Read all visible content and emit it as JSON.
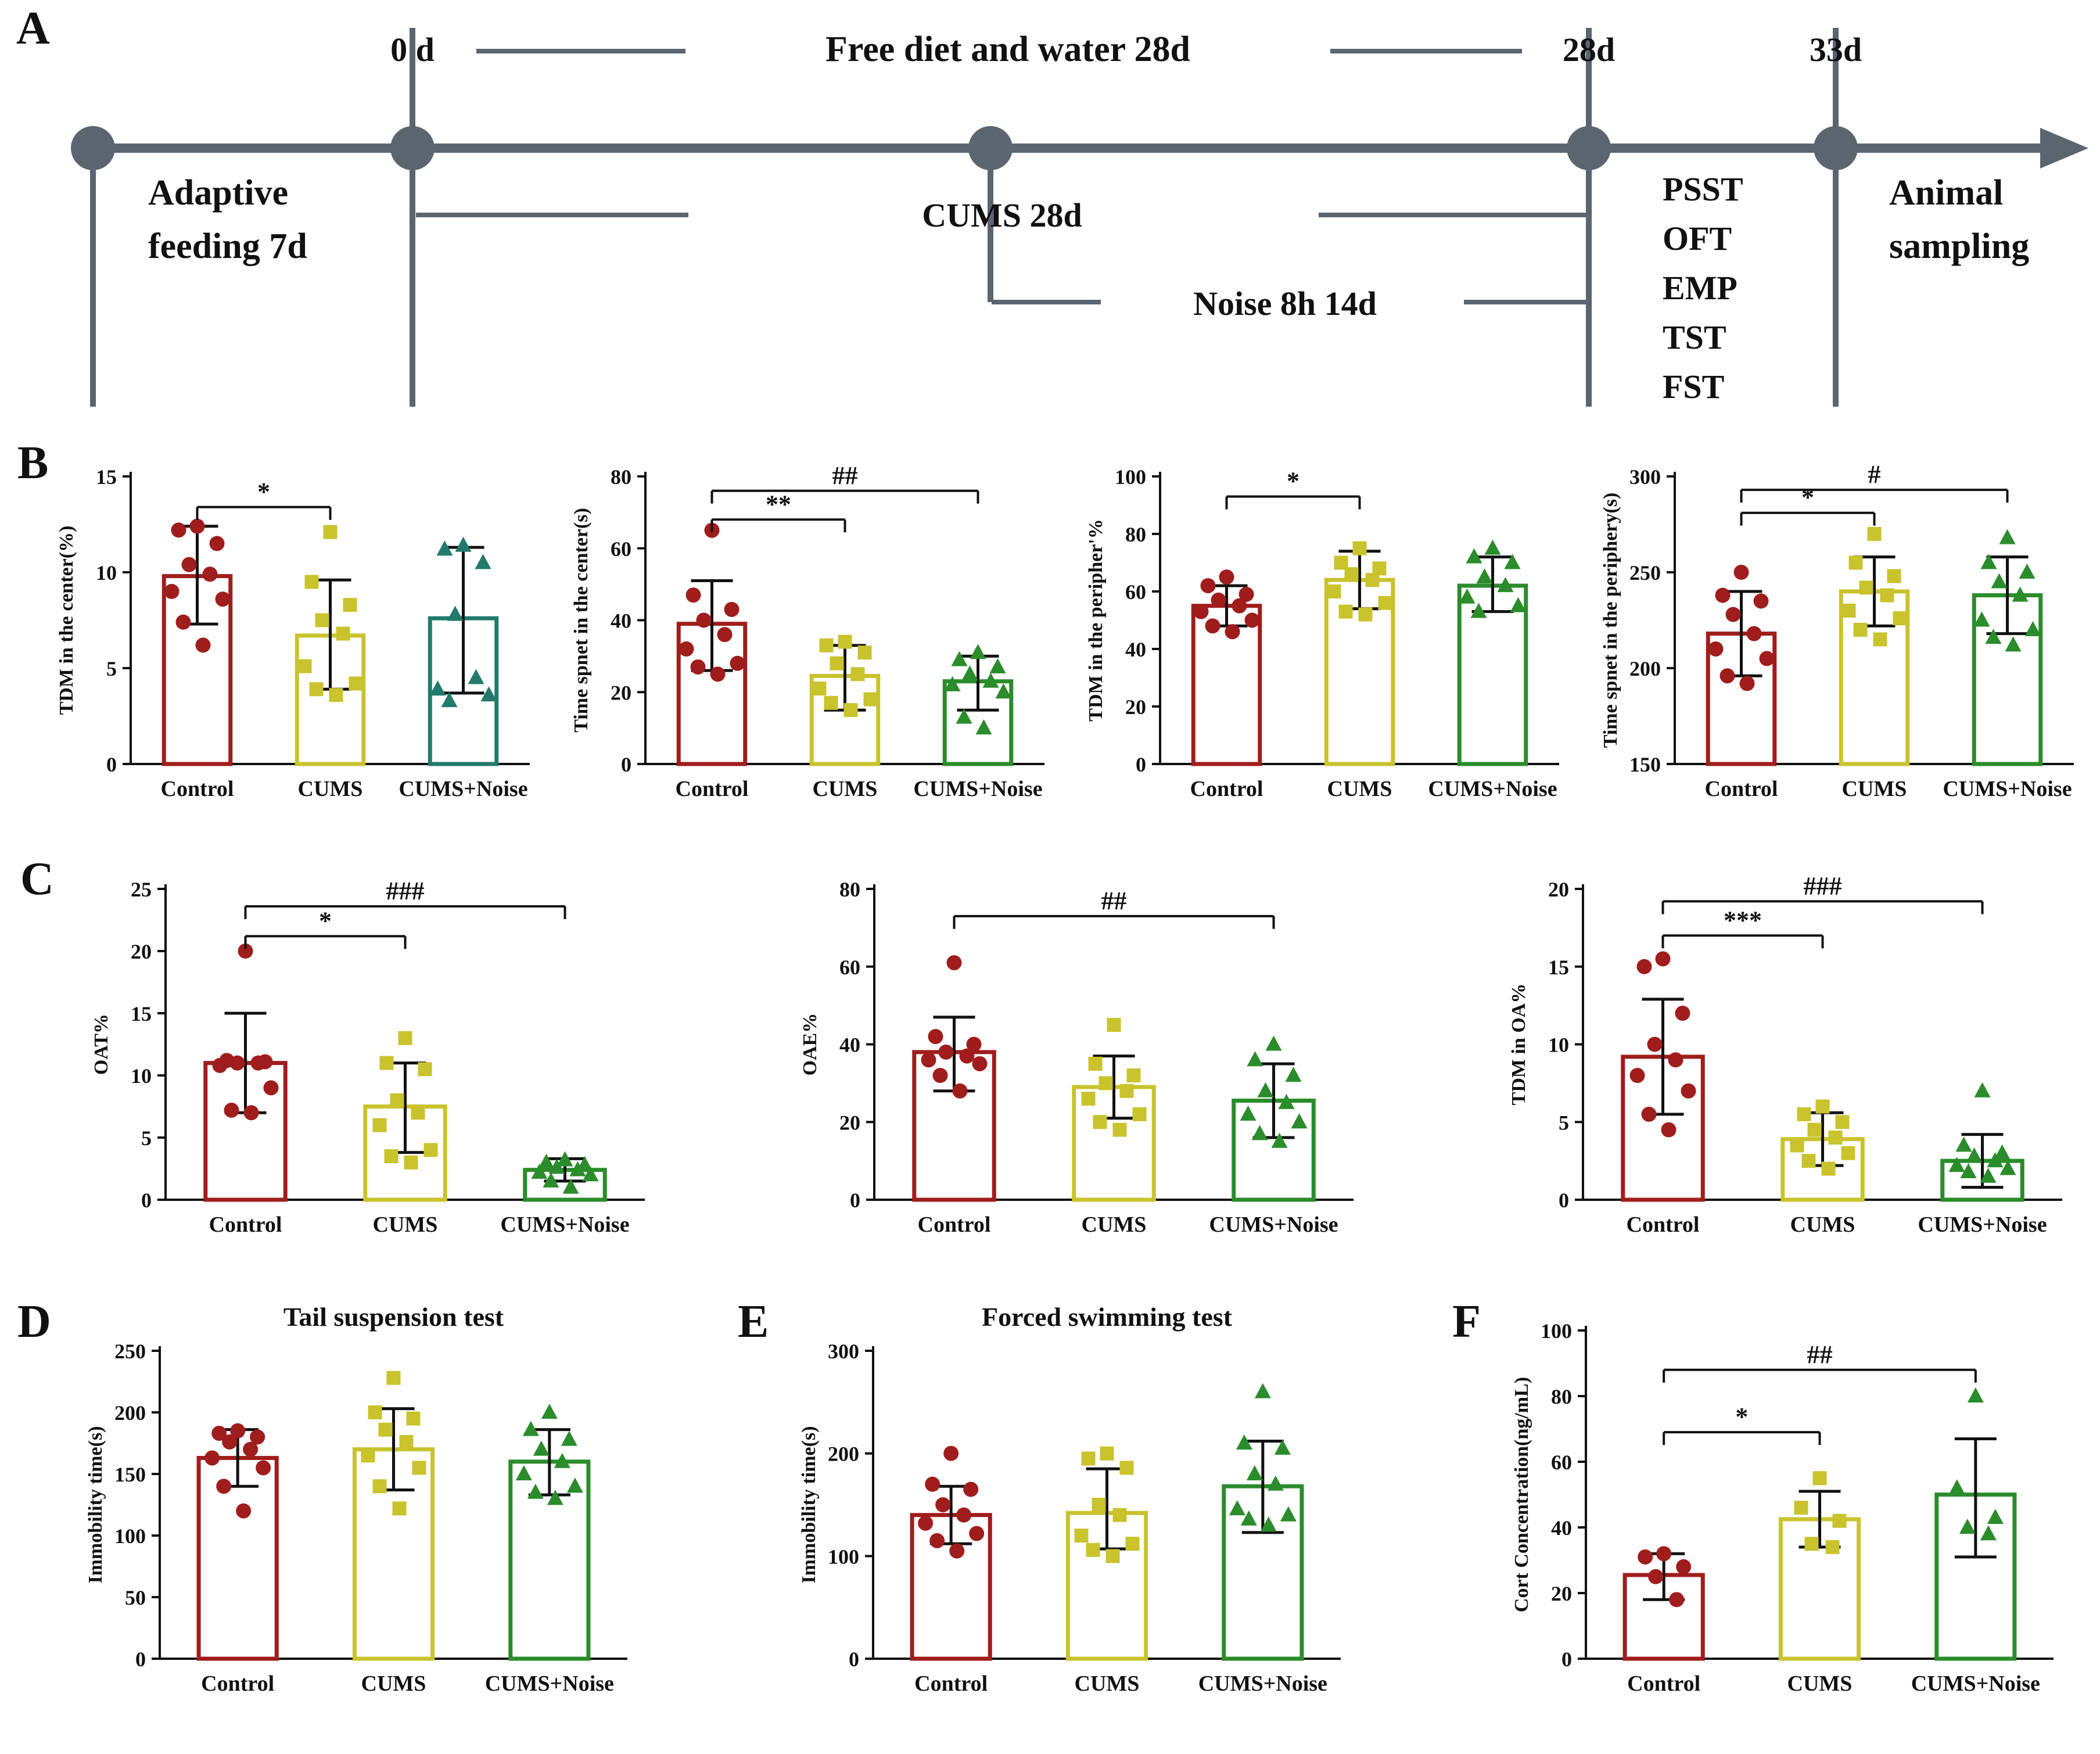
{
  "figure": {
    "panel_labels": {
      "a": "A",
      "b": "B",
      "c": "C",
      "d": "D",
      "e": "E",
      "f": "F"
    }
  },
  "timeline": {
    "color": "#5b6570",
    "labels": {
      "zero_d": "0 d",
      "free_diet": "Free diet and water 28d",
      "d28": "28d",
      "d33": "33d",
      "adaptive_line1": "Adaptive",
      "adaptive_line2": "feeding 7d",
      "cums": "CUMS 28d",
      "noise": "Noise 8h 14d",
      "tests": [
        "PSST",
        "OFT",
        "EMP",
        "TST",
        "FST"
      ],
      "animal_line1": "Animal",
      "animal_line2": "sampling"
    }
  },
  "groups": [
    "Control",
    "CUMS",
    "CUMS+Noise"
  ],
  "colors": {
    "control": "#A01D1D",
    "cums": "#C9C32D",
    "green": "#2B8C2B",
    "teal": "#217A6B"
  },
  "chart_data": [
    {
      "id": "B1",
      "type": "bar",
      "title": "",
      "ylabel": "TDM in the center(%)",
      "ylim": [
        0,
        15
      ],
      "yticks": [
        0,
        5,
        10,
        15
      ],
      "categories": [
        "Control",
        "CUMS",
        "CUMS+Noise"
      ],
      "marker_shapes": [
        "circle",
        "square",
        "triangle"
      ],
      "group_colors": [
        "#A01D1D",
        "#C9C32D",
        "#217A6B"
      ],
      "bars": [
        9.8,
        6.7,
        7.6
      ],
      "err_low": [
        7.3,
        3.9,
        3.7
      ],
      "err_high": [
        12.4,
        9.6,
        11.3
      ],
      "points": [
        [
          12.4,
          12.2,
          11.5,
          10.4,
          9.9,
          9.0,
          8.6,
          7.4,
          6.2
        ],
        [
          12.1,
          9.5,
          8.3,
          7.5,
          6.8,
          5.1,
          4.2,
          3.9,
          3.6
        ],
        [
          11.4,
          11.2,
          10.5,
          7.8,
          4.5,
          3.9,
          3.6,
          3.3
        ]
      ],
      "sig": [
        {
          "from": 0,
          "to": 1,
          "label": "*",
          "y": 13.4
        }
      ]
    },
    {
      "id": "B2",
      "type": "bar",
      "title": "",
      "ylabel": "Time spnet in the center(s)",
      "ylim": [
        0,
        80
      ],
      "yticks": [
        0,
        20,
        40,
        60,
        80
      ],
      "categories": [
        "Control",
        "CUMS",
        "CUMS+Noise"
      ],
      "marker_shapes": [
        "circle",
        "square",
        "triangle"
      ],
      "group_colors": [
        "#A01D1D",
        "#C9C32D",
        "#2B8C2B"
      ],
      "bars": [
        39,
        24.5,
        23
      ],
      "err_low": [
        26,
        15,
        15
      ],
      "err_high": [
        51,
        33,
        30
      ],
      "points": [
        [
          65,
          47,
          43,
          40,
          36,
          32,
          28,
          27,
          25
        ],
        [
          34,
          33,
          31,
          28,
          25,
          21,
          18,
          17,
          15
        ],
        [
          31,
          29,
          27,
          25,
          23,
          22,
          20,
          13,
          10
        ]
      ],
      "sig": [
        {
          "from": 0,
          "to": 1,
          "label": "**",
          "y": 68
        },
        {
          "from": 0,
          "to": 2,
          "label": "##",
          "y": 76
        }
      ]
    },
    {
      "id": "B3",
      "type": "bar",
      "title": "",
      "ylabel": "TDM in the peripher'%",
      "ylim": [
        0,
        100
      ],
      "yticks": [
        0,
        20,
        40,
        60,
        80,
        100
      ],
      "categories": [
        "Control",
        "CUMS",
        "CUMS+Noise"
      ],
      "marker_shapes": [
        "circle",
        "square",
        "triangle"
      ],
      "group_colors": [
        "#A01D1D",
        "#C9C32D",
        "#2B8C2B"
      ],
      "bars": [
        55,
        64,
        62
      ],
      "err_low": [
        48,
        54,
        53
      ],
      "err_high": [
        62,
        74,
        72
      ],
      "points": [
        [
          65,
          62,
          59,
          57,
          55,
          53,
          50,
          48,
          46
        ],
        [
          75,
          70,
          68,
          66,
          64,
          60,
          56,
          53,
          52
        ],
        [
          75,
          72,
          70,
          65,
          62,
          58,
          55,
          53
        ]
      ],
      "sig": [
        {
          "from": 0,
          "to": 1,
          "label": "*",
          "y": 93
        }
      ]
    },
    {
      "id": "B4",
      "type": "bar",
      "title": "",
      "ylabel": "Time spnet in the periphery(s)",
      "ylim": [
        150,
        300
      ],
      "yticks": [
        150,
        200,
        250,
        300
      ],
      "categories": [
        "Control",
        "CUMS",
        "CUMS+Noise"
      ],
      "marker_shapes": [
        "circle",
        "square",
        "triangle"
      ],
      "group_colors": [
        "#A01D1D",
        "#C9C32D",
        "#2B8C2B"
      ],
      "bars": [
        218,
        240,
        238
      ],
      "err_low": [
        196,
        222,
        218
      ],
      "err_high": [
        240,
        258,
        258
      ],
      "points": [
        [
          250,
          238,
          235,
          228,
          218,
          210,
          205,
          196,
          192
        ],
        [
          270,
          255,
          248,
          242,
          238,
          230,
          226,
          220,
          215
        ],
        [
          268,
          255,
          250,
          245,
          238,
          225,
          220,
          216,
          212
        ]
      ],
      "sig": [
        {
          "from": 0,
          "to": 1,
          "label": "*",
          "y": 281
        },
        {
          "from": 0,
          "to": 2,
          "label": "#",
          "y": 293
        }
      ]
    },
    {
      "id": "C1",
      "type": "bar",
      "title": "",
      "ylabel": "OAT%",
      "ylim": [
        0,
        25
      ],
      "yticks": [
        0,
        5,
        10,
        15,
        20,
        25
      ],
      "categories": [
        "Control",
        "CUMS",
        "CUMS+Noise"
      ],
      "marker_shapes": [
        "circle",
        "square",
        "triangle"
      ],
      "group_colors": [
        "#A01D1D",
        "#C9C32D",
        "#2B8C2B"
      ],
      "bars": [
        11,
        7.5,
        2.4
      ],
      "err_low": [
        7,
        3.8,
        1.5
      ],
      "err_high": [
        15,
        11,
        3.3
      ],
      "points": [
        [
          20,
          11.2,
          11.1,
          11,
          11,
          10.8,
          9,
          7.2,
          7
        ],
        [
          13,
          11,
          10.5,
          8,
          7,
          6,
          4,
          3.5,
          3
        ],
        [
          3.2,
          3,
          2.8,
          2.6,
          2.4,
          2.2,
          2,
          1.5,
          1
        ]
      ],
      "sig": [
        {
          "from": 0,
          "to": 1,
          "label": "*",
          "y": 21.2
        },
        {
          "from": 0,
          "to": 2,
          "label": "###",
          "y": 23.6
        }
      ]
    },
    {
      "id": "C2",
      "type": "bar",
      "title": "",
      "ylabel": "OAE%",
      "ylim": [
        0,
        80
      ],
      "yticks": [
        0,
        20,
        40,
        60,
        80
      ],
      "categories": [
        "Control",
        "CUMS",
        "CUMS+Noise"
      ],
      "marker_shapes": [
        "circle",
        "square",
        "triangle"
      ],
      "group_colors": [
        "#A01D1D",
        "#C9C32D",
        "#2B8C2B"
      ],
      "bars": [
        38,
        29,
        25.5
      ],
      "err_low": [
        28,
        21,
        16
      ],
      "err_high": [
        47,
        37,
        35
      ],
      "points": [
        [
          61,
          42,
          40,
          38,
          37,
          36,
          35,
          32,
          28
        ],
        [
          45,
          35,
          32,
          30,
          28,
          26,
          22,
          20,
          18
        ],
        [
          40,
          36,
          32,
          28,
          25,
          22,
          20,
          17,
          15
        ]
      ],
      "sig": [
        {
          "from": 0,
          "to": 2,
          "label": "##",
          "y": 73
        }
      ]
    },
    {
      "id": "C3",
      "type": "bar",
      "title": "",
      "ylabel": "TDM in OA%",
      "ylim": [
        0,
        20
      ],
      "yticks": [
        0,
        5,
        10,
        15,
        20
      ],
      "categories": [
        "Control",
        "CUMS",
        "CUMS+Noise"
      ],
      "marker_shapes": [
        "circle",
        "square",
        "triangle"
      ],
      "group_colors": [
        "#A01D1D",
        "#C9C32D",
        "#2B8C2B"
      ],
      "bars": [
        9.2,
        3.9,
        2.5
      ],
      "err_low": [
        5.5,
        2.2,
        0.8
      ],
      "err_high": [
        12.9,
        5.6,
        4.2
      ],
      "points": [
        [
          15.5,
          15,
          12,
          10,
          9,
          8,
          7,
          5.5,
          4.5
        ],
        [
          6,
          5.5,
          5,
          4.5,
          4,
          3.5,
          3,
          2.5,
          2
        ],
        [
          7,
          3.5,
          3,
          2.8,
          2.5,
          2.2,
          2,
          1.8,
          1.5
        ]
      ],
      "sig": [
        {
          "from": 0,
          "to": 1,
          "label": "***",
          "y": 17
        },
        {
          "from": 0,
          "to": 2,
          "label": "###",
          "y": 19.2
        }
      ]
    },
    {
      "id": "D",
      "type": "bar",
      "title": "Tail suspension test",
      "ylabel": "Immobility time(s)",
      "ylim": [
        0,
        250
      ],
      "yticks": [
        0,
        50,
        100,
        150,
        200,
        250
      ],
      "categories": [
        "Control",
        "CUMS",
        "CUMS+Noise"
      ],
      "marker_shapes": [
        "circle",
        "square",
        "triangle"
      ],
      "group_colors": [
        "#A01D1D",
        "#C9C32D",
        "#2B8C2B"
      ],
      "bars": [
        163,
        170,
        160
      ],
      "err_low": [
        140,
        137,
        133
      ],
      "err_high": [
        186,
        203,
        186
      ],
      "points": [
        [
          185,
          183,
          180,
          176,
          170,
          163,
          155,
          140,
          120
        ],
        [
          228,
          200,
          195,
          186,
          176,
          165,
          155,
          140,
          122
        ],
        [
          200,
          186,
          178,
          170,
          160,
          150,
          140,
          135,
          130
        ]
      ],
      "sig": []
    },
    {
      "id": "E",
      "type": "bar",
      "title": "Forced swimming test",
      "ylabel": "Immobility time(s)",
      "ylim": [
        0,
        300
      ],
      "yticks": [
        0,
        100,
        200,
        300
      ],
      "categories": [
        "Control",
        "CUMS",
        "CUMS+Noise"
      ],
      "marker_shapes": [
        "circle",
        "square",
        "triangle"
      ],
      "group_colors": [
        "#A01D1D",
        "#C9C32D",
        "#2B8C2B"
      ],
      "bars": [
        140,
        142,
        168
      ],
      "err_low": [
        112,
        107,
        123
      ],
      "err_high": [
        168,
        185,
        212
      ],
      "points": [
        [
          200,
          170,
          165,
          150,
          140,
          132,
          122,
          115,
          105
        ],
        [
          200,
          195,
          186,
          150,
          140,
          120,
          112,
          106,
          100
        ],
        [
          260,
          210,
          205,
          180,
          170,
          146,
          140,
          136,
          130
        ]
      ],
      "sig": []
    },
    {
      "id": "F",
      "type": "bar",
      "title": "",
      "ylabel": "Cort Concentration(ng/mL)",
      "ylim": [
        0,
        100
      ],
      "yticks": [
        0,
        20,
        40,
        60,
        80,
        100
      ],
      "categories": [
        "Control",
        "CUMS",
        "CUMS+Noise"
      ],
      "marker_shapes": [
        "circle",
        "square",
        "triangle"
      ],
      "group_colors": [
        "#A01D1D",
        "#C9C32D",
        "#2B8C2B"
      ],
      "bars": [
        25.5,
        42.5,
        50
      ],
      "err_low": [
        18,
        34,
        31
      ],
      "err_high": [
        32,
        51,
        67
      ],
      "points": [
        [
          32,
          31,
          28,
          25,
          18
        ],
        [
          55,
          46,
          42,
          35,
          34
        ],
        [
          80,
          52,
          43,
          40,
          38
        ]
      ],
      "sig": [
        {
          "from": 0,
          "to": 1,
          "label": "*",
          "y": 69
        },
        {
          "from": 0,
          "to": 2,
          "label": "##",
          "y": 88
        }
      ]
    }
  ]
}
